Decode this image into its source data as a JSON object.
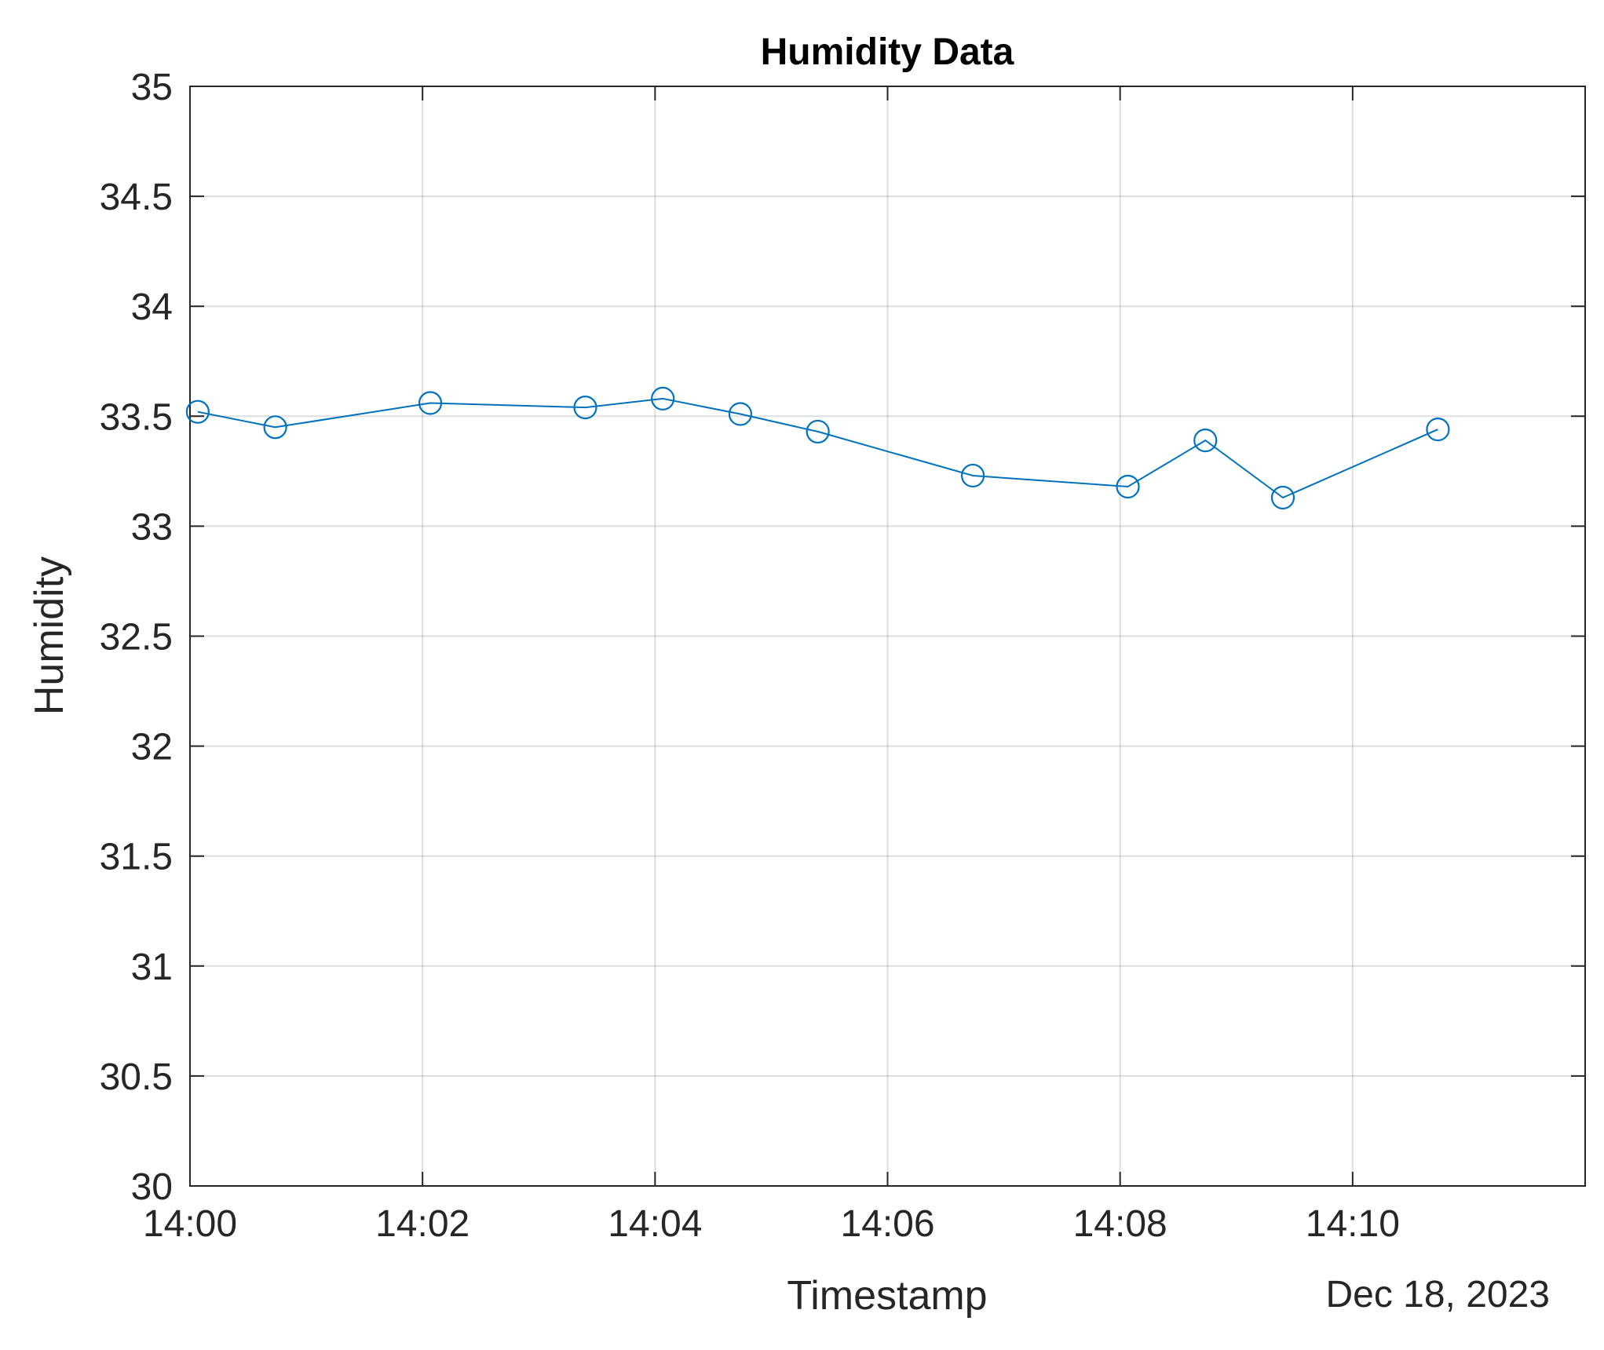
{
  "chart_data": {
    "type": "line",
    "title": "Humidity Data",
    "xlabel": "Timestamp",
    "ylabel": "Humidity",
    "date_label": "Dec 18, 2023",
    "xlim": [
      "14:00",
      "14:12"
    ],
    "ylim": [
      30,
      35
    ],
    "grid": true,
    "x_ticks": [
      "14:00",
      "14:02",
      "14:04",
      "14:06",
      "14:08",
      "14:10"
    ],
    "y_ticks": [
      "30",
      "30.5",
      "31",
      "31.5",
      "32",
      "32.5",
      "33",
      "33.5",
      "34",
      "34.5",
      "35"
    ],
    "series": [
      {
        "color": "#0072BD",
        "marker": "circle",
        "x": [
          "14:00:04",
          "14:00:44",
          "14:02:04",
          "14:03:24",
          "14:04:04",
          "14:04:44",
          "14:05:24",
          "14:06:44",
          "14:08:04",
          "14:08:44",
          "14:09:24",
          "14:10:44"
        ],
        "y": [
          33.52,
          33.45,
          33.56,
          33.54,
          33.58,
          33.51,
          33.43,
          33.23,
          33.18,
          33.39,
          33.13,
          33.44
        ]
      }
    ]
  }
}
